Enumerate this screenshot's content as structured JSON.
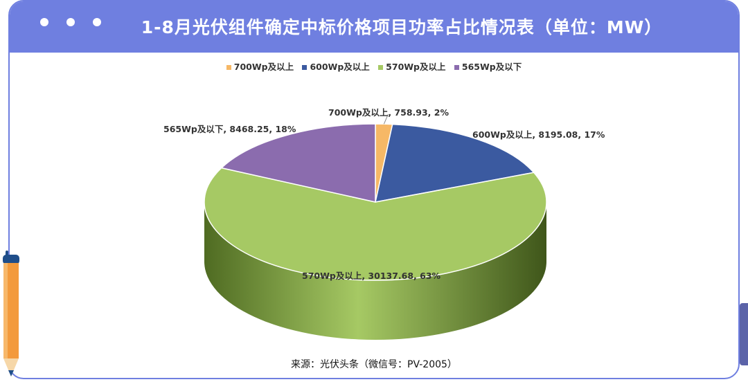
{
  "header": {
    "title": "1-8月光伏组件确定中标价格项目功率占比情况表（单位：MW）",
    "accent_color": "#6f7fe0"
  },
  "chart_data": {
    "type": "pie",
    "style": "3d",
    "legend_position": "top",
    "title": "",
    "categories": [
      "700Wp及以上",
      "600Wp及以上",
      "570Wp及以上",
      "565Wp及以下"
    ],
    "values": [
      758.93,
      8195.08,
      30137.68,
      8468.25
    ],
    "percents": [
      "2%",
      "17%",
      "63%",
      "18%"
    ],
    "colors": [
      "#f6b866",
      "#3b5aa0",
      "#a6c964",
      "#8b6cae"
    ],
    "data_labels": [
      "700Wp及以上, 758.93, 2%",
      "600Wp及以上, 8195.08, 17%",
      "570Wp及以上, 30137.68, 63%",
      "565Wp及以下, 8468.25, 18%"
    ]
  },
  "footer": {
    "source": "来源：光伏头条（微信号：PV-2005）"
  }
}
